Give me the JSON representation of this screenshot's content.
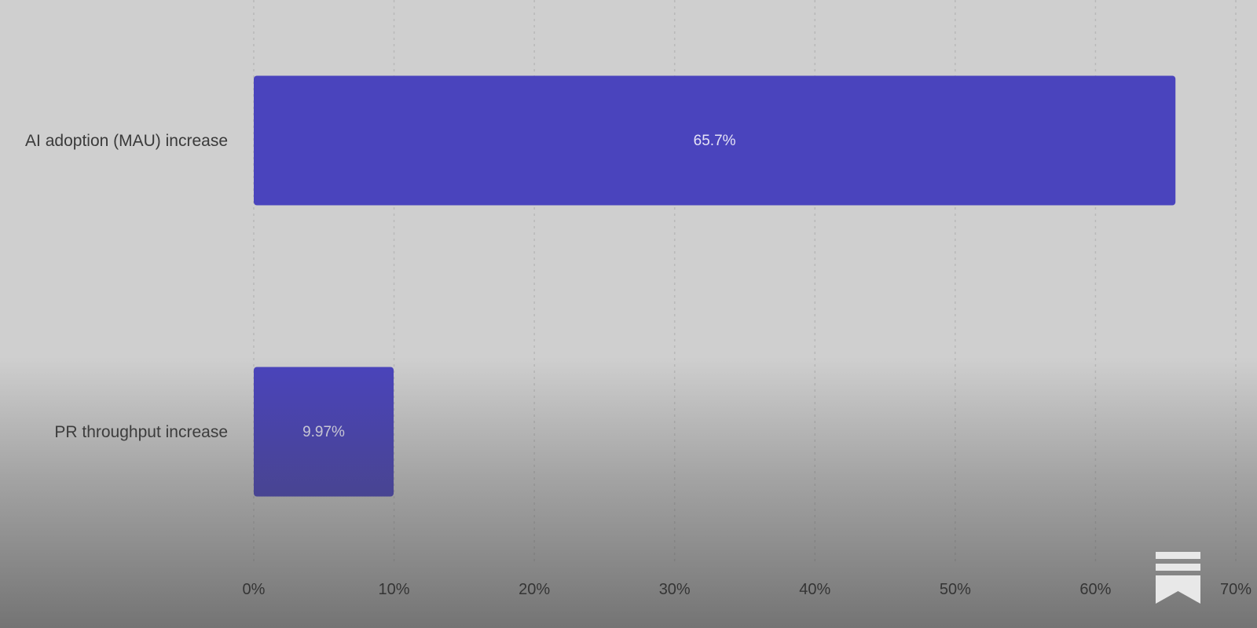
{
  "chart_data": {
    "type": "bar",
    "orientation": "horizontal",
    "categories": [
      "AI adoption (MAU) increase",
      "PR throughput increase"
    ],
    "values": [
      65.7,
      9.97
    ],
    "data_labels": [
      "65.7%",
      "9.97%"
    ],
    "title": "",
    "xlabel": "",
    "ylabel": "",
    "xlim": [
      0,
      70
    ],
    "x_ticks": [
      0,
      10,
      20,
      30,
      40,
      50,
      60,
      70
    ],
    "x_tick_labels": [
      "0%",
      "10%",
      "20%",
      "30%",
      "40%",
      "50%",
      "60%",
      "70%"
    ],
    "grid": "vertical dashed",
    "legend": "none"
  },
  "colors": {
    "background": "#cfcfcf",
    "bar": "#4a44bd",
    "data_label_text": "#e6e4f6",
    "gridline": "#b9b9b9",
    "axis_text": "#2a2a2a"
  },
  "brand": {
    "icon": "substack-logo-icon"
  }
}
